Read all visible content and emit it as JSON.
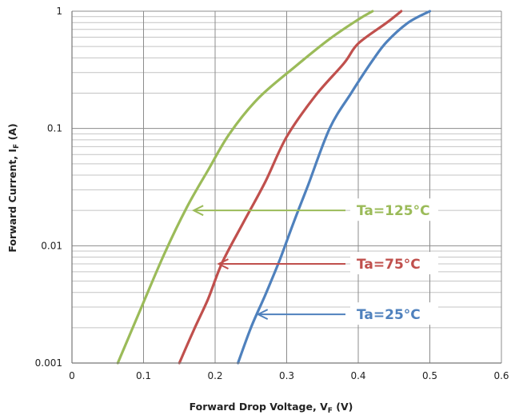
{
  "chart_data": {
    "type": "line",
    "xlabel": "Forward Drop Voltage, V",
    "xlabel_subscript": "F",
    "xlabel_unit": " (V)",
    "ylabel": "Forward Current, I",
    "ylabel_subscript": "F",
    "ylabel_unit": " (A)",
    "xlim": [
      0,
      0.6
    ],
    "ylim": [
      0.001,
      1
    ],
    "yscale": "log",
    "grid": true,
    "x_ticks": [
      0,
      0.1,
      0.2,
      0.3,
      0.4,
      0.5,
      0.6
    ],
    "x_tick_labels": [
      "0",
      "0.1",
      "0.2",
      "0.3",
      "0.4",
      "0.5",
      "0.6"
    ],
    "y_ticks": [
      0.001,
      0.01,
      0.1,
      1
    ],
    "y_tick_labels": [
      "0.001",
      "0.01",
      "0.1",
      "1"
    ],
    "series": [
      {
        "name": "Ta=125°C",
        "color": "#9bbb59",
        "label_value": [
          0.17,
          0.02
        ],
        "x": [
          0.064,
          0.08,
          0.1,
          0.13,
          0.16,
          0.19,
          0.22,
          0.26,
          0.31,
          0.36,
          0.4,
          0.42
        ],
        "y": [
          0.001,
          0.0017,
          0.0033,
          0.0088,
          0.021,
          0.044,
          0.09,
          0.18,
          0.33,
          0.58,
          0.85,
          1.0
        ]
      },
      {
        "name": "Ta=75°C",
        "color": "#c0504d",
        "label_value": [
          0.205,
          0.007
        ],
        "x": [
          0.15,
          0.17,
          0.19,
          0.21,
          0.24,
          0.27,
          0.3,
          0.34,
          0.38,
          0.4,
          0.44,
          0.46
        ],
        "y": [
          0.001,
          0.0019,
          0.0035,
          0.0072,
          0.016,
          0.035,
          0.085,
          0.19,
          0.36,
          0.53,
          0.8,
          1.0
        ]
      },
      {
        "name": "Ta=25°C",
        "color": "#4f81bd",
        "label_value": [
          0.26,
          0.0026
        ],
        "x": [
          0.232,
          0.25,
          0.27,
          0.29,
          0.31,
          0.33,
          0.36,
          0.39,
          0.42,
          0.44,
          0.47,
          0.5
        ],
        "y": [
          0.001,
          0.002,
          0.0038,
          0.0075,
          0.016,
          0.033,
          0.1,
          0.2,
          0.38,
          0.55,
          0.8,
          1.0
        ]
      }
    ]
  }
}
